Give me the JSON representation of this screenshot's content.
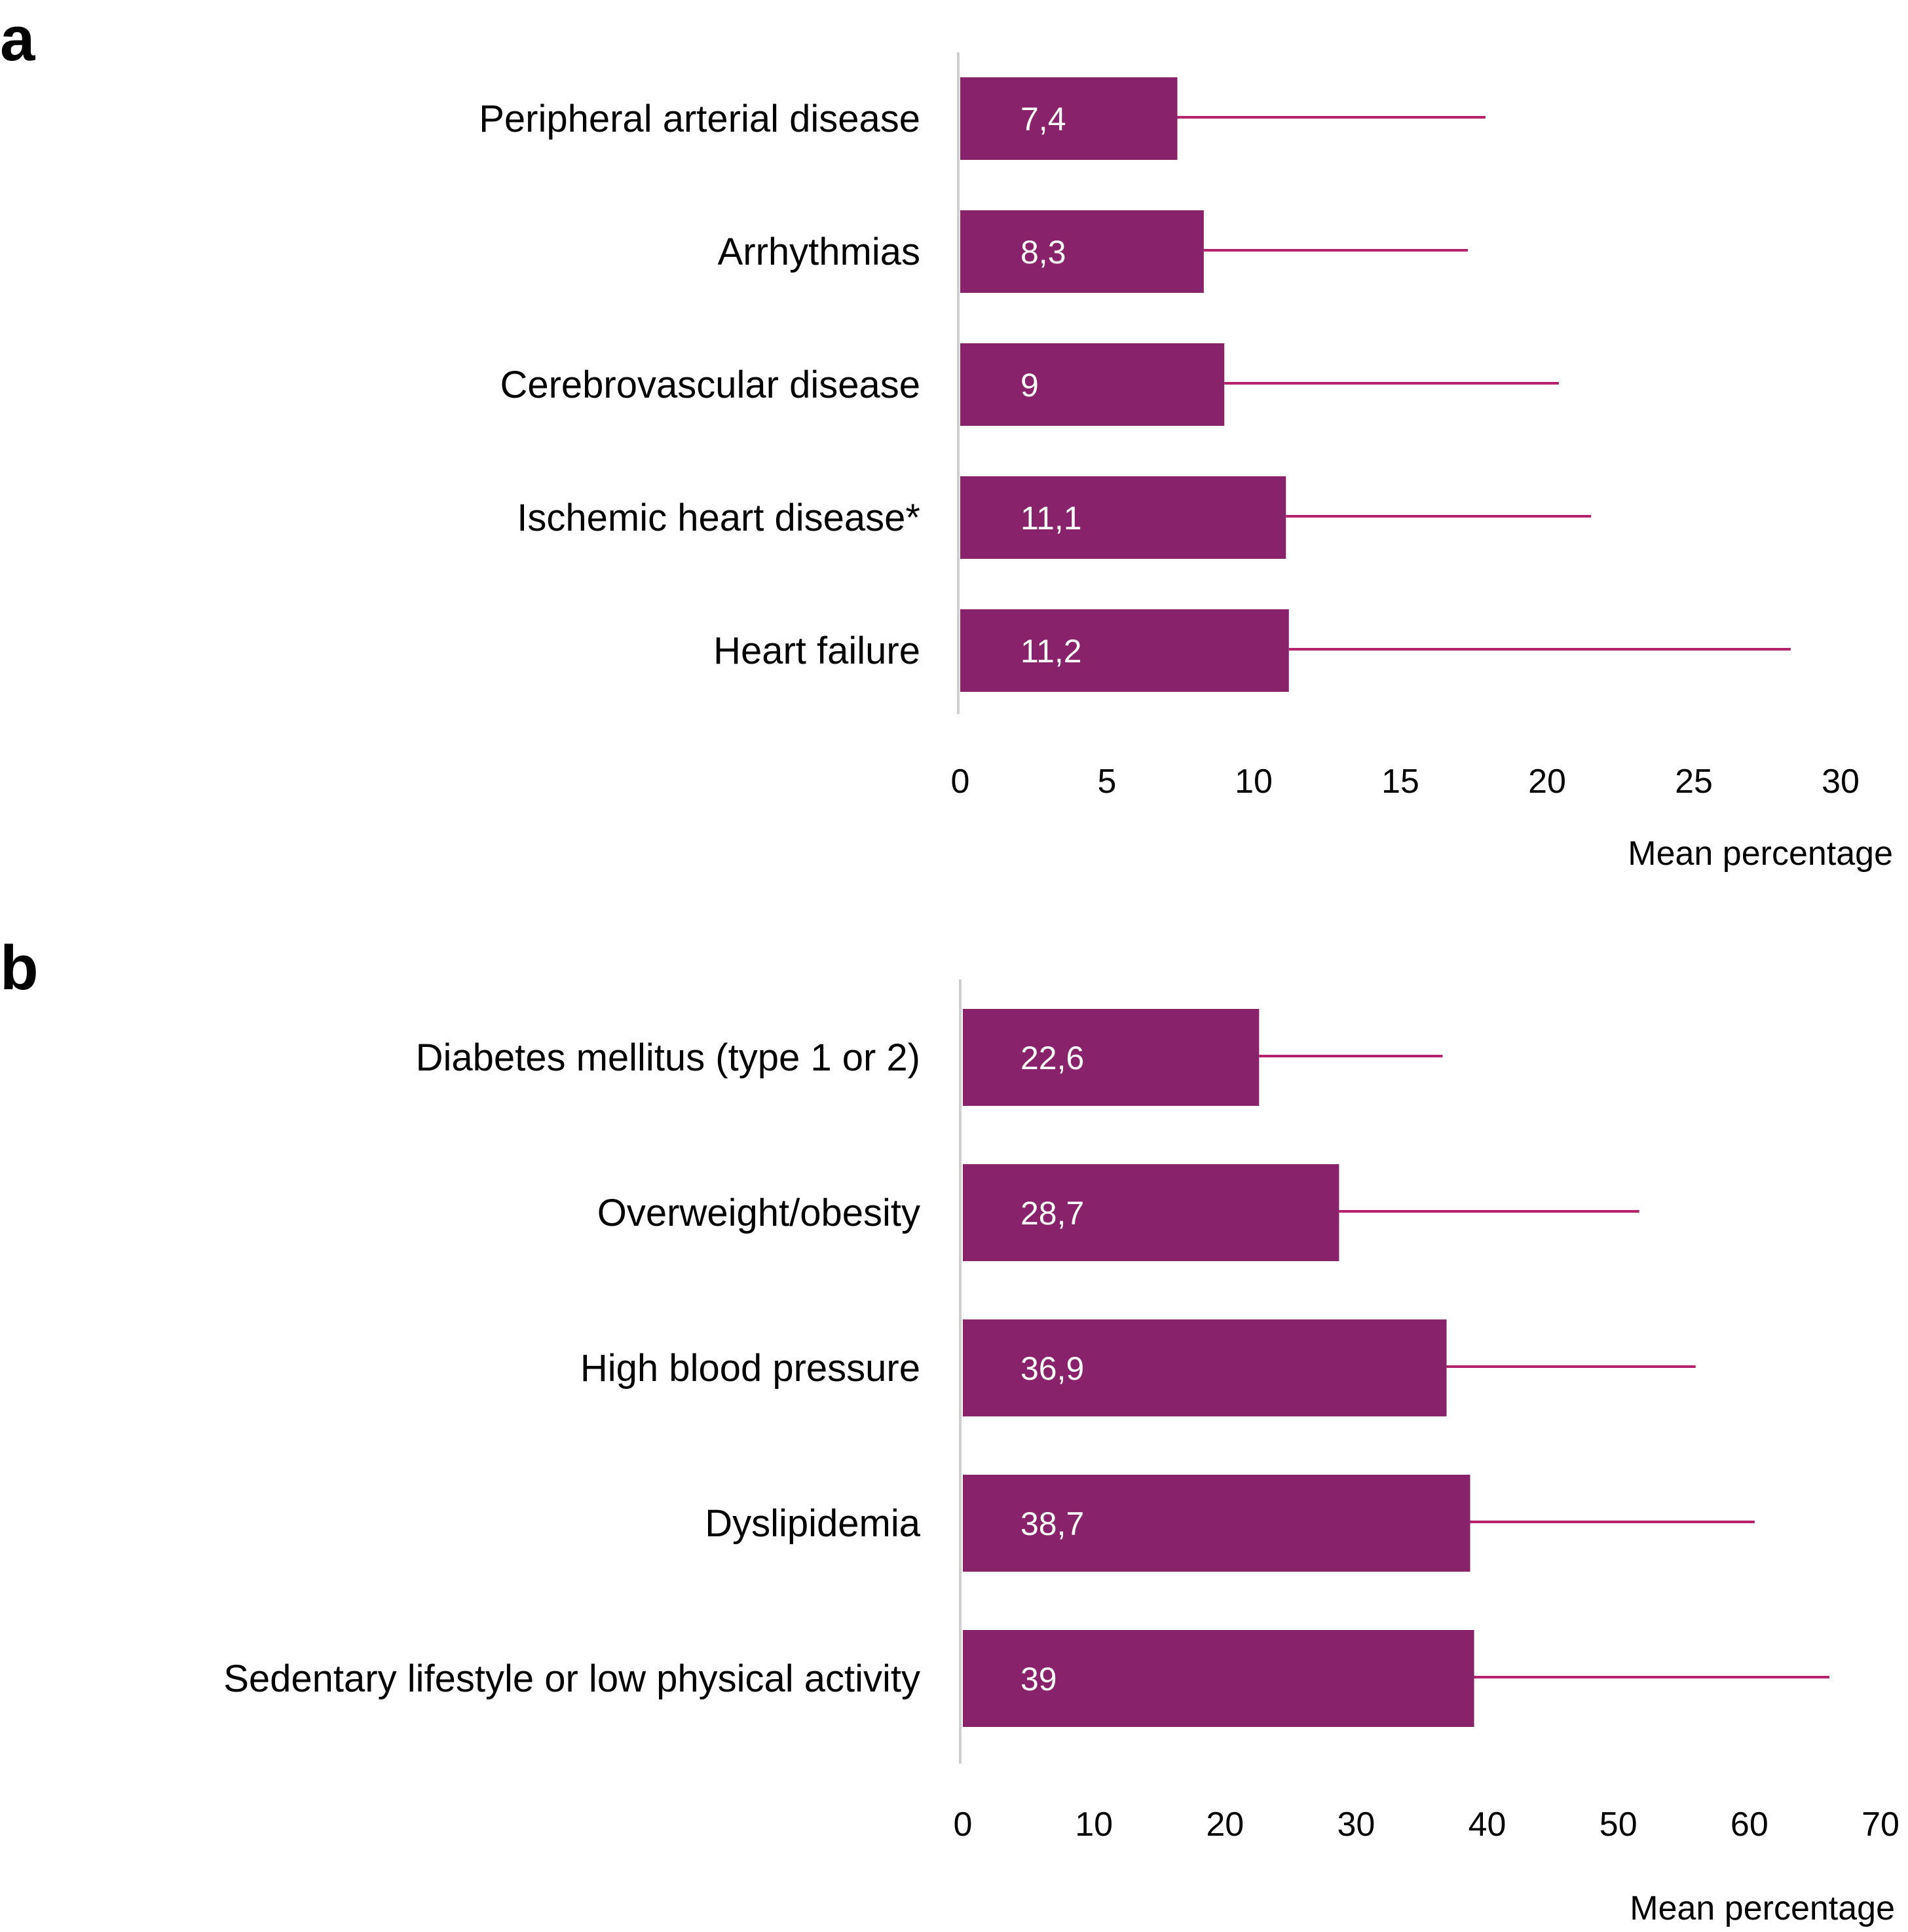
{
  "colors": {
    "bar": "#88226a",
    "error": "#b5236f",
    "axis": "#cfcfcf"
  },
  "chart_data": [
    {
      "panel": "a",
      "type": "bar",
      "orientation": "horizontal",
      "categories": [
        "Peripheral arterial disease",
        "Arrhythmias",
        "Cerebrovascular disease",
        "Ischemic heart disease*",
        "Heart failure"
      ],
      "values": [
        7.4,
        8.3,
        9,
        11.1,
        11.2
      ],
      "value_labels": [
        "7,4",
        "8,3",
        "9",
        "11,1",
        "11,2"
      ],
      "error_upper": [
        17.9,
        17.3,
        20.4,
        21.5,
        28.3
      ],
      "xlabel": "Mean percentage",
      "xlim": [
        0,
        30
      ],
      "ticks": [
        0,
        5,
        10,
        15,
        20,
        25,
        30
      ],
      "grid": false,
      "legend": "none"
    },
    {
      "panel": "b",
      "type": "bar",
      "orientation": "horizontal",
      "categories": [
        "Diabetes mellitus (type 1 or 2)",
        "Overweight/obesity",
        "High blood pressure",
        "Dyslipidemia",
        "Sedentary lifestyle or low physical activity"
      ],
      "values": [
        22.6,
        28.7,
        36.9,
        38.7,
        39
      ],
      "value_labels": [
        "22,6",
        "28,7",
        "36,9",
        "38,7",
        "39"
      ],
      "error_upper": [
        36.6,
        51.6,
        55.9,
        60.4,
        66.1
      ],
      "xlabel": "Mean percentage",
      "xlim": [
        0,
        70
      ],
      "ticks": [
        0,
        10,
        20,
        30,
        40,
        50,
        60,
        70
      ],
      "grid": false,
      "legend": "none"
    }
  ]
}
